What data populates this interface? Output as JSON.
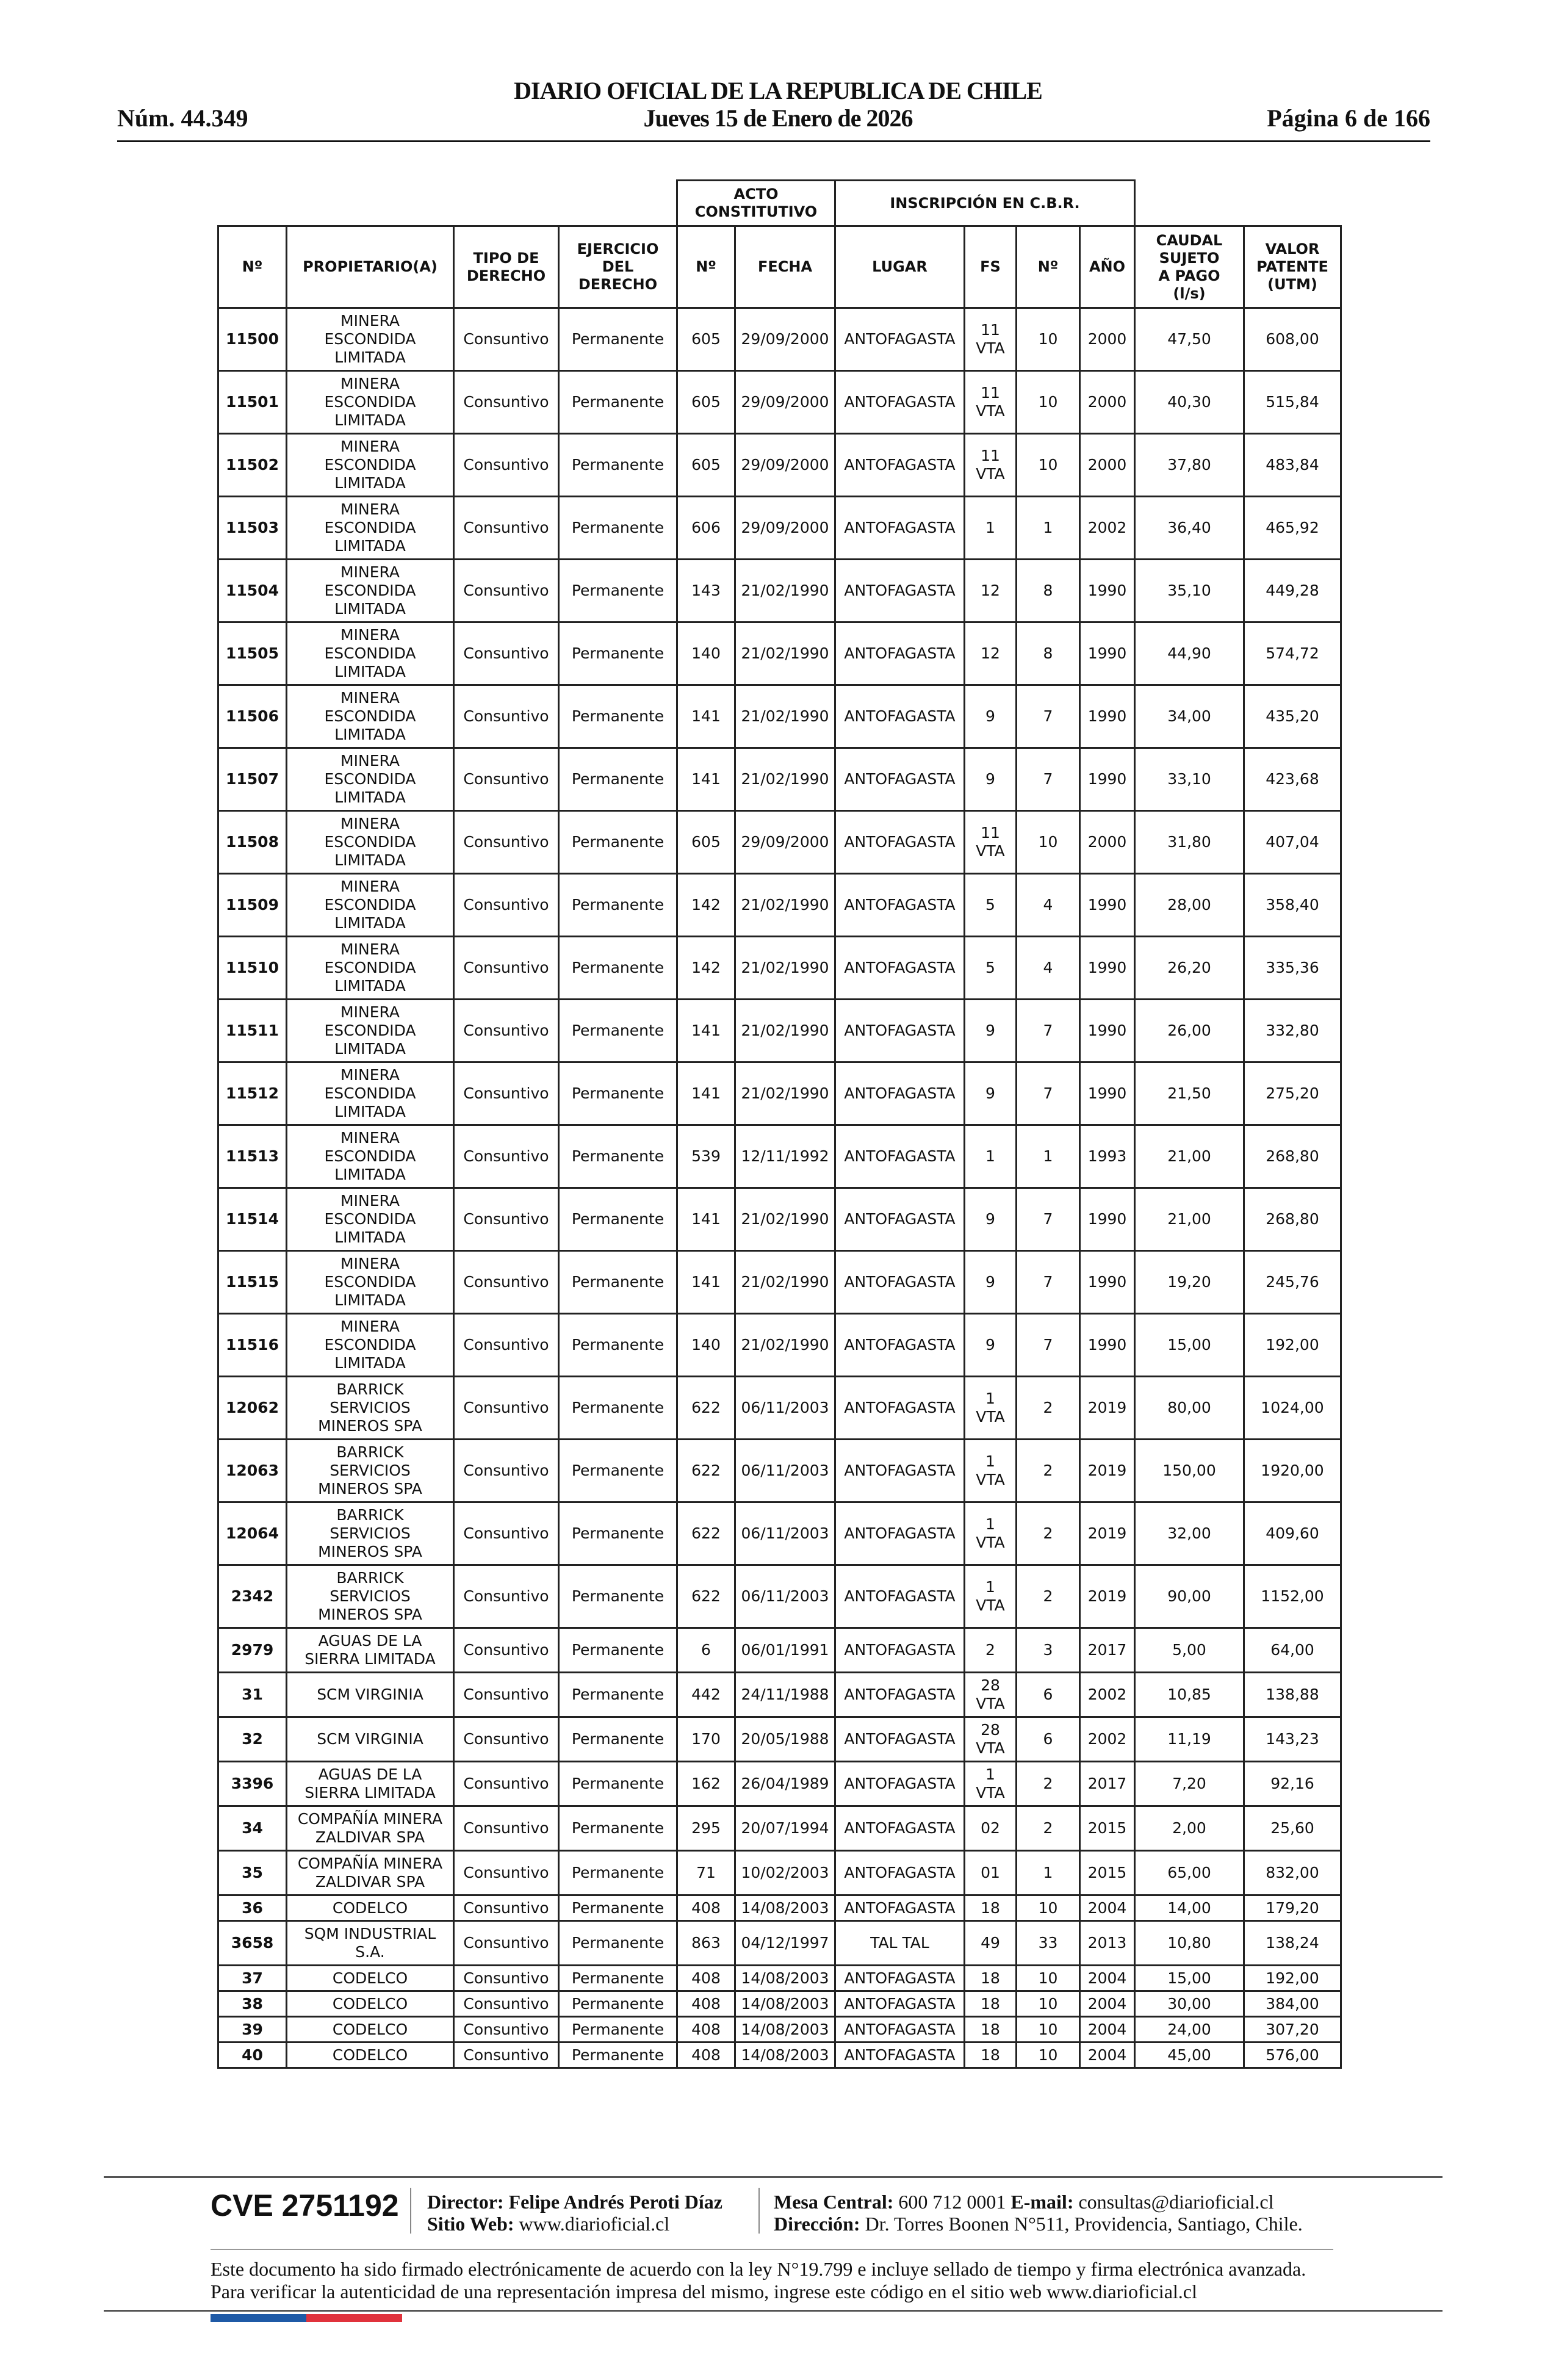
{
  "header": {
    "title": "DIARIO OFICIAL DE LA REPUBLICA DE CHILE",
    "date": "Jueves 15 de Enero de 2026",
    "issue": "Núm. 44.349",
    "page": "Página 6 de 166"
  },
  "table": {
    "group_headers": {
      "acto": "ACTO\nCONSTITUTIVO",
      "inscripcion": "INSCRIPCIÓN EN C.B.R."
    },
    "columns": [
      "Nº",
      "PROPIETARIO(A)",
      "TIPO DE\nDERECHO",
      "EJERCICIO\nDEL\nDERECHO",
      "Nº",
      "FECHA",
      "LUGAR",
      "FS",
      "Nº",
      "AÑO",
      "CAUDAL\nSUJETO\nA PAGO\n(l/s)",
      "VALOR\nPATENTE\n(UTM)"
    ],
    "rows": [
      [
        "11500",
        "MINERA\nESCONDIDA\nLIMITADA",
        "Consuntivo",
        "Permanente",
        "605",
        "29/09/2000",
        "ANTOFAGASTA",
        "11\nVTA",
        "10",
        "2000",
        "47,50",
        "608,00"
      ],
      [
        "11501",
        "MINERA\nESCONDIDA\nLIMITADA",
        "Consuntivo",
        "Permanente",
        "605",
        "29/09/2000",
        "ANTOFAGASTA",
        "11\nVTA",
        "10",
        "2000",
        "40,30",
        "515,84"
      ],
      [
        "11502",
        "MINERA\nESCONDIDA\nLIMITADA",
        "Consuntivo",
        "Permanente",
        "605",
        "29/09/2000",
        "ANTOFAGASTA",
        "11\nVTA",
        "10",
        "2000",
        "37,80",
        "483,84"
      ],
      [
        "11503",
        "MINERA\nESCONDIDA\nLIMITADA",
        "Consuntivo",
        "Permanente",
        "606",
        "29/09/2000",
        "ANTOFAGASTA",
        "1",
        "1",
        "2002",
        "36,40",
        "465,92"
      ],
      [
        "11504",
        "MINERA\nESCONDIDA\nLIMITADA",
        "Consuntivo",
        "Permanente",
        "143",
        "21/02/1990",
        "ANTOFAGASTA",
        "12",
        "8",
        "1990",
        "35,10",
        "449,28"
      ],
      [
        "11505",
        "MINERA\nESCONDIDA\nLIMITADA",
        "Consuntivo",
        "Permanente",
        "140",
        "21/02/1990",
        "ANTOFAGASTA",
        "12",
        "8",
        "1990",
        "44,90",
        "574,72"
      ],
      [
        "11506",
        "MINERA\nESCONDIDA\nLIMITADA",
        "Consuntivo",
        "Permanente",
        "141",
        "21/02/1990",
        "ANTOFAGASTA",
        "9",
        "7",
        "1990",
        "34,00",
        "435,20"
      ],
      [
        "11507",
        "MINERA\nESCONDIDA\nLIMITADA",
        "Consuntivo",
        "Permanente",
        "141",
        "21/02/1990",
        "ANTOFAGASTA",
        "9",
        "7",
        "1990",
        "33,10",
        "423,68"
      ],
      [
        "11508",
        "MINERA\nESCONDIDA\nLIMITADA",
        "Consuntivo",
        "Permanente",
        "605",
        "29/09/2000",
        "ANTOFAGASTA",
        "11\nVTA",
        "10",
        "2000",
        "31,80",
        "407,04"
      ],
      [
        "11509",
        "MINERA\nESCONDIDA\nLIMITADA",
        "Consuntivo",
        "Permanente",
        "142",
        "21/02/1990",
        "ANTOFAGASTA",
        "5",
        "4",
        "1990",
        "28,00",
        "358,40"
      ],
      [
        "11510",
        "MINERA\nESCONDIDA\nLIMITADA",
        "Consuntivo",
        "Permanente",
        "142",
        "21/02/1990",
        "ANTOFAGASTA",
        "5",
        "4",
        "1990",
        "26,20",
        "335,36"
      ],
      [
        "11511",
        "MINERA\nESCONDIDA\nLIMITADA",
        "Consuntivo",
        "Permanente",
        "141",
        "21/02/1990",
        "ANTOFAGASTA",
        "9",
        "7",
        "1990",
        "26,00",
        "332,80"
      ],
      [
        "11512",
        "MINERA\nESCONDIDA\nLIMITADA",
        "Consuntivo",
        "Permanente",
        "141",
        "21/02/1990",
        "ANTOFAGASTA",
        "9",
        "7",
        "1990",
        "21,50",
        "275,20"
      ],
      [
        "11513",
        "MINERA\nESCONDIDA\nLIMITADA",
        "Consuntivo",
        "Permanente",
        "539",
        "12/11/1992",
        "ANTOFAGASTA",
        "1",
        "1",
        "1993",
        "21,00",
        "268,80"
      ],
      [
        "11514",
        "MINERA\nESCONDIDA\nLIMITADA",
        "Consuntivo",
        "Permanente",
        "141",
        "21/02/1990",
        "ANTOFAGASTA",
        "9",
        "7",
        "1990",
        "21,00",
        "268,80"
      ],
      [
        "11515",
        "MINERA\nESCONDIDA\nLIMITADA",
        "Consuntivo",
        "Permanente",
        "141",
        "21/02/1990",
        "ANTOFAGASTA",
        "9",
        "7",
        "1990",
        "19,20",
        "245,76"
      ],
      [
        "11516",
        "MINERA\nESCONDIDA\nLIMITADA",
        "Consuntivo",
        "Permanente",
        "140",
        "21/02/1990",
        "ANTOFAGASTA",
        "9",
        "7",
        "1990",
        "15,00",
        "192,00"
      ],
      [
        "12062",
        "BARRICK\nSERVICIOS\nMINEROS SPA",
        "Consuntivo",
        "Permanente",
        "622",
        "06/11/2003",
        "ANTOFAGASTA",
        "1\nVTA",
        "2",
        "2019",
        "80,00",
        "1024,00"
      ],
      [
        "12063",
        "BARRICK\nSERVICIOS\nMINEROS SPA",
        "Consuntivo",
        "Permanente",
        "622",
        "06/11/2003",
        "ANTOFAGASTA",
        "1\nVTA",
        "2",
        "2019",
        "150,00",
        "1920,00"
      ],
      [
        "12064",
        "BARRICK\nSERVICIOS\nMINEROS SPA",
        "Consuntivo",
        "Permanente",
        "622",
        "06/11/2003",
        "ANTOFAGASTA",
        "1\nVTA",
        "2",
        "2019",
        "32,00",
        "409,60"
      ],
      [
        "2342",
        "BARRICK\nSERVICIOS\nMINEROS SPA",
        "Consuntivo",
        "Permanente",
        "622",
        "06/11/2003",
        "ANTOFAGASTA",
        "1\nVTA",
        "2",
        "2019",
        "90,00",
        "1152,00"
      ],
      [
        "2979",
        "AGUAS DE LA\nSIERRA LIMITADA",
        "Consuntivo",
        "Permanente",
        "6",
        "06/01/1991",
        "ANTOFAGASTA",
        "2",
        "3",
        "2017",
        "5,00",
        "64,00"
      ],
      [
        "31",
        "SCM VIRGINIA",
        "Consuntivo",
        "Permanente",
        "442",
        "24/11/1988",
        "ANTOFAGASTA",
        "28\nVTA",
        "6",
        "2002",
        "10,85",
        "138,88"
      ],
      [
        "32",
        "SCM VIRGINIA",
        "Consuntivo",
        "Permanente",
        "170",
        "20/05/1988",
        "ANTOFAGASTA",
        "28\nVTA",
        "6",
        "2002",
        "11,19",
        "143,23"
      ],
      [
        "3396",
        "AGUAS DE LA\nSIERRA LIMITADA",
        "Consuntivo",
        "Permanente",
        "162",
        "26/04/1989",
        "ANTOFAGASTA",
        "1\nVTA",
        "2",
        "2017",
        "7,20",
        "92,16"
      ],
      [
        "34",
        "COMPAÑÍA MINERA\nZALDIVAR SPA",
        "Consuntivo",
        "Permanente",
        "295",
        "20/07/1994",
        "ANTOFAGASTA",
        "02",
        "2",
        "2015",
        "2,00",
        "25,60"
      ],
      [
        "35",
        "COMPAÑÍA MINERA\nZALDIVAR SPA",
        "Consuntivo",
        "Permanente",
        "71",
        "10/02/2003",
        "ANTOFAGASTA",
        "01",
        "1",
        "2015",
        "65,00",
        "832,00"
      ],
      [
        "36",
        "CODELCO",
        "Consuntivo",
        "Permanente",
        "408",
        "14/08/2003",
        "ANTOFAGASTA",
        "18",
        "10",
        "2004",
        "14,00",
        "179,20"
      ],
      [
        "3658",
        "SQM INDUSTRIAL\nS.A.",
        "Consuntivo",
        "Permanente",
        "863",
        "04/12/1997",
        "TAL TAL",
        "49",
        "33",
        "2013",
        "10,80",
        "138,24"
      ],
      [
        "37",
        "CODELCO",
        "Consuntivo",
        "Permanente",
        "408",
        "14/08/2003",
        "ANTOFAGASTA",
        "18",
        "10",
        "2004",
        "15,00",
        "192,00"
      ],
      [
        "38",
        "CODELCO",
        "Consuntivo",
        "Permanente",
        "408",
        "14/08/2003",
        "ANTOFAGASTA",
        "18",
        "10",
        "2004",
        "30,00",
        "384,00"
      ],
      [
        "39",
        "CODELCO",
        "Consuntivo",
        "Permanente",
        "408",
        "14/08/2003",
        "ANTOFAGASTA",
        "18",
        "10",
        "2004",
        "24,00",
        "307,20"
      ],
      [
        "40",
        "CODELCO",
        "Consuntivo",
        "Permanente",
        "408",
        "14/08/2003",
        "ANTOFAGASTA",
        "18",
        "10",
        "2004",
        "45,00",
        "576,00"
      ]
    ]
  },
  "footer": {
    "cve": "CVE 2751192",
    "director_label": "Director:",
    "director": "Felipe Andrés Peroti Díaz",
    "web_label": "Sitio Web:",
    "web": "www.diarioficial.cl",
    "mesa_label": "Mesa Central:",
    "mesa": "600 712 0001",
    "email_label": "E-mail:",
    "email": "consultas@diarioficial.cl",
    "direccion_label": "Dirección:",
    "direccion": "Dr. Torres Boonen N°511, Providencia, Santiago, Chile.",
    "legal": "Este documento ha sido firmado electrónicamente de acuerdo con la ley N°19.799 e incluye sellado de tiempo y firma electrónica avanzada. Para verificar la autenticidad de una representación impresa del mismo, ingrese este código en el sitio web www.diarioficial.cl",
    "colors": {
      "blue": "#1f5aa6",
      "red": "#e0323c"
    }
  }
}
